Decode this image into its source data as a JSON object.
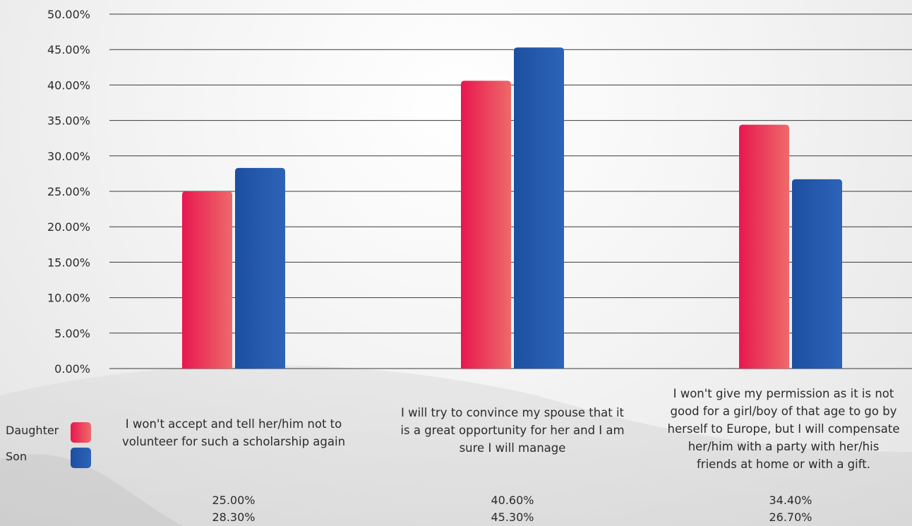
{
  "colors": {
    "daughter_from": "#e8174f",
    "daughter_to": "#ee6a6a",
    "son_from": "#1c4fa0",
    "son_to": "#2d64b8",
    "grid": "#3a3a3a"
  },
  "legend": [
    {
      "label": "Daughter",
      "color": "daughter"
    },
    {
      "label": "Son",
      "color": "son"
    }
  ],
  "chart_data": {
    "type": "bar",
    "categories": [
      "I won't accept and tell her/him not to volunteer for such a scholarship again",
      "I will try to convince my spouse that it is a great opportunity for her and I am sure I will manage",
      "I won't give my permission as it is not good for a girl/boy of that age to go by herself to Europe, but I will compensate her/him with a party with her/his friends at home or with a gift."
    ],
    "category_lines": [
      [
        "I won't accept and tell her/him not to",
        "volunteer for such a scholarship again"
      ],
      [
        "I will try to convince my spouse that it",
        "is a great opportunity for her and I am",
        "sure I will manage"
      ],
      [
        "I won't give my permission as it is not",
        "good for a girl/boy of that age to go by",
        "herself to Europe, but I will compensate",
        "her/him with a party with her/his",
        "friends at home or with a gift."
      ]
    ],
    "series": [
      {
        "name": "Daughter",
        "values": [
          25.0,
          40.6,
          34.4
        ],
        "labels": [
          "25.00%",
          "40.60%",
          "34.40%"
        ]
      },
      {
        "name": "Son",
        "values": [
          28.3,
          45.3,
          26.7
        ],
        "labels": [
          "28.30%",
          "45.30%",
          "26.70%"
        ]
      }
    ],
    "ylim": [
      0,
      50
    ],
    "yticks": [
      "0.00%",
      "5.00%",
      "10.00%",
      "15.00%",
      "20.00%",
      "25.00%",
      "30.00%",
      "35.00%",
      "40.00%",
      "45.00%",
      "50.00%"
    ],
    "grid": true,
    "legend_position": "bottom-left"
  }
}
